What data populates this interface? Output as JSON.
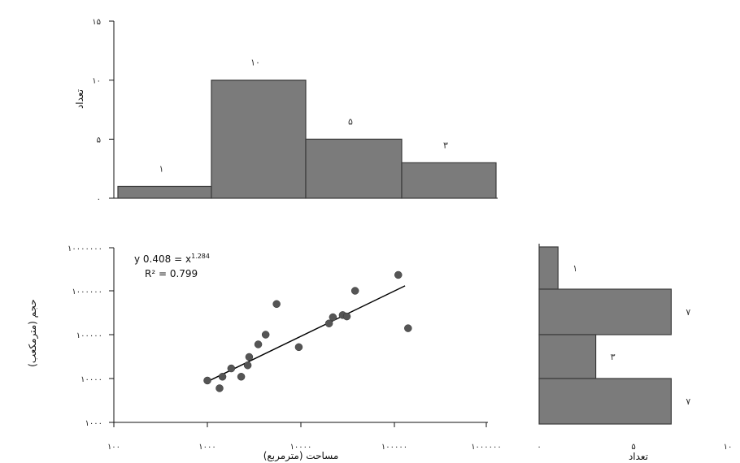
{
  "chart_data": [
    {
      "type": "bar",
      "orientation": "vertical",
      "categories": [
        "",
        "",
        "",
        ""
      ],
      "values": [
        1,
        10,
        5,
        3
      ],
      "data_labels": [
        "۱",
        "۱۰",
        "۵",
        "۳"
      ],
      "ylabel": "تعداد",
      "ylim": [
        0,
        15
      ],
      "y_ticks": [
        "۰",
        "۵",
        "۱۰",
        "۱۵"
      ],
      "grid": false
    },
    {
      "type": "scatter",
      "xlabel": "مساحت (مترمربع)",
      "ylabel": "حجم (مترمکعب)",
      "x_scale": "log",
      "y_scale": "log",
      "xlim": [
        100,
        1000000
      ],
      "ylim": [
        1000,
        10000000
      ],
      "x_ticks": [
        "۱۰۰",
        "۱۰۰۰",
        "۱۰۰۰۰",
        "۱۰۰۰۰۰",
        "۱۰۰۰۰۰۰"
      ],
      "y_ticks": [
        "۱۰۰۰",
        "۱۰۰۰۰",
        "۱۰۰۰۰۰",
        "۱۰۰۰۰۰۰",
        "۱۰۰۰۰۰۰۰"
      ],
      "points": [
        {
          "x": 1000,
          "y": 9000
        },
        {
          "x": 1350,
          "y": 6000
        },
        {
          "x": 1450,
          "y": 11000
        },
        {
          "x": 1800,
          "y": 17000
        },
        {
          "x": 2300,
          "y": 11000
        },
        {
          "x": 2700,
          "y": 20000
        },
        {
          "x": 2800,
          "y": 31000
        },
        {
          "x": 3500,
          "y": 60000
        },
        {
          "x": 4200,
          "y": 100000
        },
        {
          "x": 9500,
          "y": 52000
        },
        {
          "x": 5500,
          "y": 500000
        },
        {
          "x": 20000,
          "y": 180000
        },
        {
          "x": 22000,
          "y": 250000
        },
        {
          "x": 28000,
          "y": 280000
        },
        {
          "x": 31000,
          "y": 260000
        },
        {
          "x": 38000,
          "y": 1000000
        },
        {
          "x": 110000,
          "y": 2300000
        },
        {
          "x": 140000,
          "y": 140000
        }
      ],
      "trendline": {
        "type": "power",
        "x_range": [
          1000,
          130000
        ],
        "y_range": [
          8500,
          1300000
        ],
        "equation": "y 0.408 = x",
        "exponent": "1.284",
        "r2": "R² = 0.799"
      },
      "grid": false
    },
    {
      "type": "bar",
      "orientation": "horizontal",
      "categories": [
        "",
        "",
        "",
        ""
      ],
      "values": [
        1,
        7,
        3,
        7
      ],
      "data_labels": [
        "۱",
        "۷",
        "۳",
        "۷"
      ],
      "xlabel": "تعداد",
      "xlim": [
        0,
        10
      ],
      "x_ticks": [
        "۰",
        "۵",
        "۱۰"
      ],
      "grid": false
    }
  ]
}
